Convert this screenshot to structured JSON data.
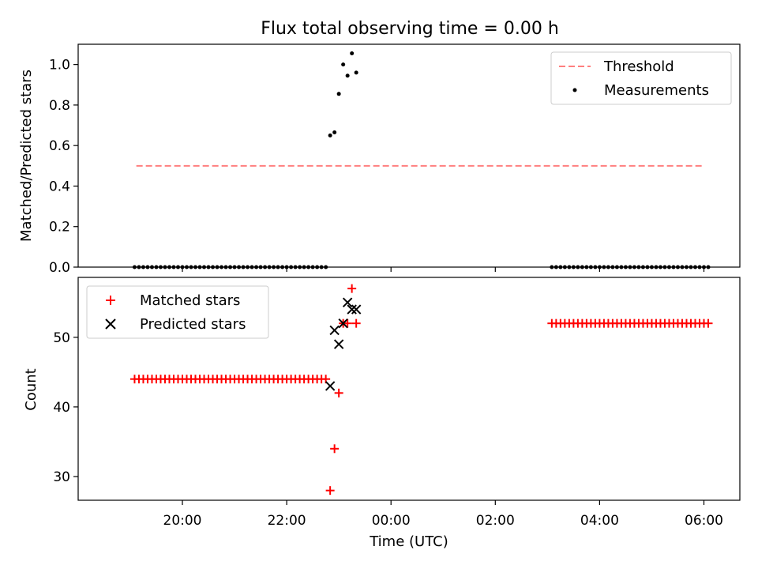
{
  "chart_data": [
    {
      "type": "scatter",
      "title": "Flux total observing time = 0.00 h",
      "xlabel": "",
      "ylabel": "Matched/Predicted stars",
      "ylim": [
        0.0,
        1.1
      ],
      "yticks": [
        0.0,
        0.2,
        0.4,
        0.6,
        0.8,
        1.0
      ],
      "ytick_labels": [
        "0.0",
        "0.2",
        "0.4",
        "0.6",
        "0.8",
        "1.0"
      ],
      "grid": false,
      "legend_position": "top-right",
      "threshold": {
        "name": "Threshold",
        "value": 0.5,
        "x_start": "19:07",
        "x_end": "06:00",
        "color": "#ff7f7f"
      },
      "series": [
        {
          "name": "Measurements",
          "color": "#000000",
          "points": [
            {
              "x": "22:50",
              "y": 0.65
            },
            {
              "x": "22:55",
              "y": 0.665
            },
            {
              "x": "23:00",
              "y": 0.855
            },
            {
              "x": "23:05",
              "y": 1.0
            },
            {
              "x": "23:10",
              "y": 0.945
            },
            {
              "x": "23:15",
              "y": 1.055
            },
            {
              "x": "23:20",
              "y": 0.96
            }
          ],
          "zero_segments": [
            {
              "start": "19:05",
              "end": "22:45",
              "step_min": 5
            },
            {
              "start": "03:05",
              "end": "06:05",
              "step_min": 5
            }
          ]
        }
      ]
    },
    {
      "type": "scatter",
      "title": "",
      "xlabel": "Time (UTC)",
      "ylabel": "Count",
      "ylim": [
        26.6,
        58.6
      ],
      "yticks": [
        30,
        40,
        50
      ],
      "ytick_labels": [
        "30",
        "40",
        "50"
      ],
      "xtick_labels": [
        "20:00",
        "22:00",
        "00:00",
        "02:00",
        "04:00",
        "06:00"
      ],
      "grid": false,
      "legend_position": "top-left",
      "series": [
        {
          "name": "Matched stars",
          "marker": "plus",
          "color": "#ff0000",
          "points": [
            {
              "x": "22:50",
              "y": 28
            },
            {
              "x": "22:55",
              "y": 34
            },
            {
              "x": "23:00",
              "y": 42
            },
            {
              "x": "23:05",
              "y": 52
            },
            {
              "x": "23:10",
              "y": 52
            },
            {
              "x": "23:15",
              "y": 57
            },
            {
              "x": "23:20",
              "y": 52
            }
          ],
          "constant_segments": [
            {
              "start": "19:05",
              "end": "22:45",
              "step_min": 5,
              "y": 44
            },
            {
              "start": "03:05",
              "end": "06:05",
              "step_min": 5,
              "y": 52
            }
          ]
        },
        {
          "name": "Predicted stars",
          "marker": "x",
          "color": "#000000",
          "points": [
            {
              "x": "22:50",
              "y": 43
            },
            {
              "x": "22:55",
              "y": 51
            },
            {
              "x": "23:00",
              "y": 49
            },
            {
              "x": "23:05",
              "y": 52
            },
            {
              "x": "23:10",
              "y": 55
            },
            {
              "x": "23:15",
              "y": 54
            },
            {
              "x": "23:20",
              "y": 54
            }
          ]
        }
      ]
    }
  ]
}
